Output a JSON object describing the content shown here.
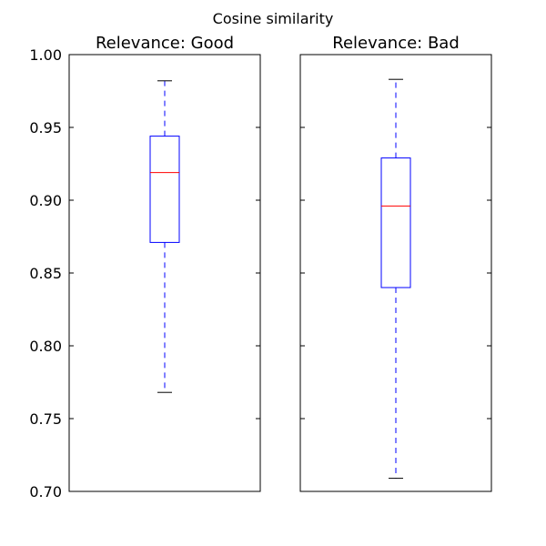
{
  "chart_data": {
    "type": "box",
    "title": "Cosine similarity",
    "ylim": [
      0.7,
      1.0
    ],
    "yticks": [
      "0.70",
      "0.75",
      "0.80",
      "0.85",
      "0.90",
      "0.95",
      "1.00"
    ],
    "shared_y": true,
    "grid": false,
    "colors": {
      "box": "#0000ff",
      "median": "#ff0000",
      "whisker": "#0000ff",
      "cap": "#000000",
      "frame": "#000000"
    },
    "panels": [
      {
        "title": "Relevance: Good",
        "box": {
          "whisker_low": 0.768,
          "q1": 0.871,
          "median": 0.919,
          "q3": 0.944,
          "whisker_high": 0.982
        }
      },
      {
        "title": "Relevance: Bad",
        "box": {
          "whisker_low": 0.709,
          "q1": 0.84,
          "median": 0.896,
          "q3": 0.929,
          "whisker_high": 0.983
        }
      }
    ]
  }
}
